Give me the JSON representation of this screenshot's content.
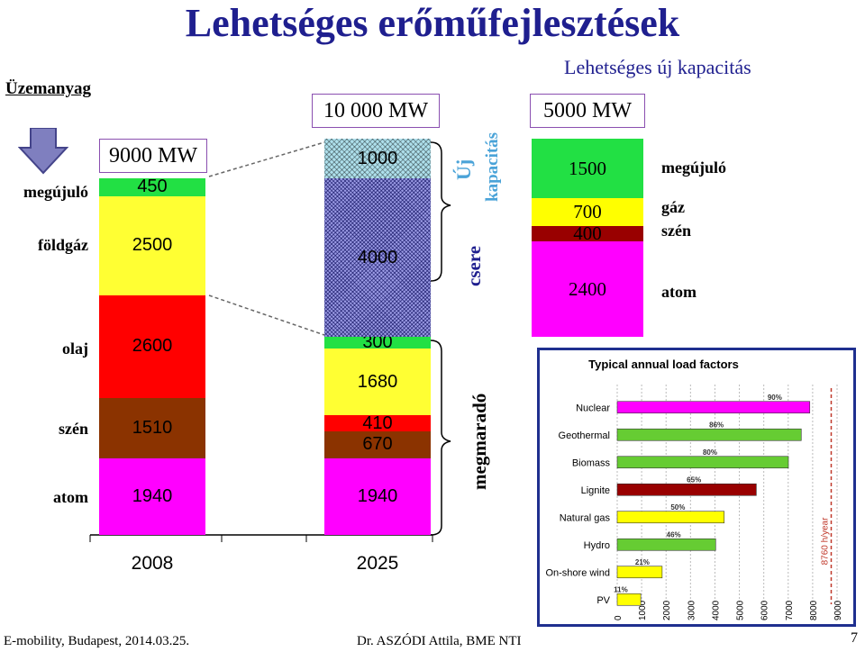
{
  "title": "Lehetséges erőműfejlesztések",
  "subtitle": "Lehetséges új kapacitás",
  "fuel_header": "Üzemanyag",
  "left_labels": {
    "megujulo": "megújuló",
    "foldgaz": "földgáz",
    "olaj": "olaj",
    "szen": "szén",
    "atom": "atom"
  },
  "boxes": {
    "b2008": "9000 MW",
    "b2025": "10 000 MW",
    "bnew": "5000 MW"
  },
  "vertical_texts": {
    "uj": "Új",
    "kapacitas": "kapacitás",
    "csere": "csere",
    "megmarado": "megmaradó"
  },
  "right_labels": {
    "megujulo": "megújuló",
    "gaz": "gáz",
    "szen": "szén",
    "atom": "atom"
  },
  "colors": {
    "renewable": "#22e044",
    "gas": "#ffff33",
    "oil": "#ff0000",
    "coal": "#8b3300",
    "nuclear": "#ff00ff",
    "newgas": "#ffff00",
    "newcoal": "#990000",
    "title": "#1f1f8f",
    "subtitle": "#1f1f8f",
    "cyan_text": "#4aa3d8"
  },
  "chart_data": [
    {
      "type": "bar",
      "title": "",
      "categories": [
        "2008",
        "2025"
      ],
      "series": [
        {
          "name": "atom",
          "values": [
            1940,
            1940
          ]
        },
        {
          "name": "szén",
          "values": [
            1510,
            670
          ]
        },
        {
          "name": "",
          "values": [
            0,
            410
          ]
        },
        {
          "name": "olaj",
          "values": [
            2600,
            0
          ]
        },
        {
          "name": "",
          "values": [
            0,
            1680
          ]
        },
        {
          "name": "",
          "values": [
            0,
            300
          ]
        },
        {
          "name": "földgáz",
          "values": [
            2500,
            4000
          ]
        },
        {
          "name": "megújuló",
          "values": [
            450,
            1000
          ]
        }
      ],
      "segment_labels": {
        "c2008": [
          "1940",
          "1510",
          "2600",
          "2500",
          "450"
        ],
        "c2025": [
          "1940",
          "670",
          "410",
          "1680",
          "300",
          "4000",
          "1000"
        ]
      }
    },
    {
      "type": "bar",
      "title": "",
      "categories": [
        "Lehetséges új kapacitás"
      ],
      "series": [
        {
          "name": "atom",
          "values": [
            2400
          ]
        },
        {
          "name": "szén",
          "values": [
            400
          ]
        },
        {
          "name": "gáz",
          "values": [
            700
          ]
        },
        {
          "name": "megújuló",
          "values": [
            1500
          ]
        }
      ],
      "segment_labels": [
        "2400",
        "400",
        "700",
        "1500"
      ]
    },
    {
      "type": "bar",
      "orientation": "horizontal",
      "title": "Typical annual load factors",
      "categories": [
        "Nuclear",
        "Geothermal",
        "Biomass",
        "Lignite",
        "Natural gas",
        "Hydro",
        "On-shore wind",
        "PV"
      ],
      "values": [
        7884,
        7534,
        7008,
        5694,
        4380,
        4030,
        1840,
        964
      ],
      "value_labels": [
        "90%",
        "86%",
        "80%",
        "65%",
        "50%",
        "46%",
        "21%",
        "11%"
      ],
      "colors": [
        "#ff00ff",
        "#66cc33",
        "#66cc33",
        "#990000",
        "#ffff00",
        "#66cc33",
        "#ffff00",
        "#ffff00"
      ],
      "xlim": [
        0,
        9000
      ],
      "xticks": [
        "0",
        "1000",
        "2000",
        "3000",
        "4000",
        "5000",
        "6000",
        "7000",
        "8000",
        "9000"
      ],
      "annotation": "8760 h/year",
      "annotation_value": 8760
    }
  ],
  "footer": {
    "left": "E-mobility, Budapest, 2014.03.25.",
    "center": "Dr. ASZÓDI Attila, BME NTI",
    "page": "7"
  }
}
